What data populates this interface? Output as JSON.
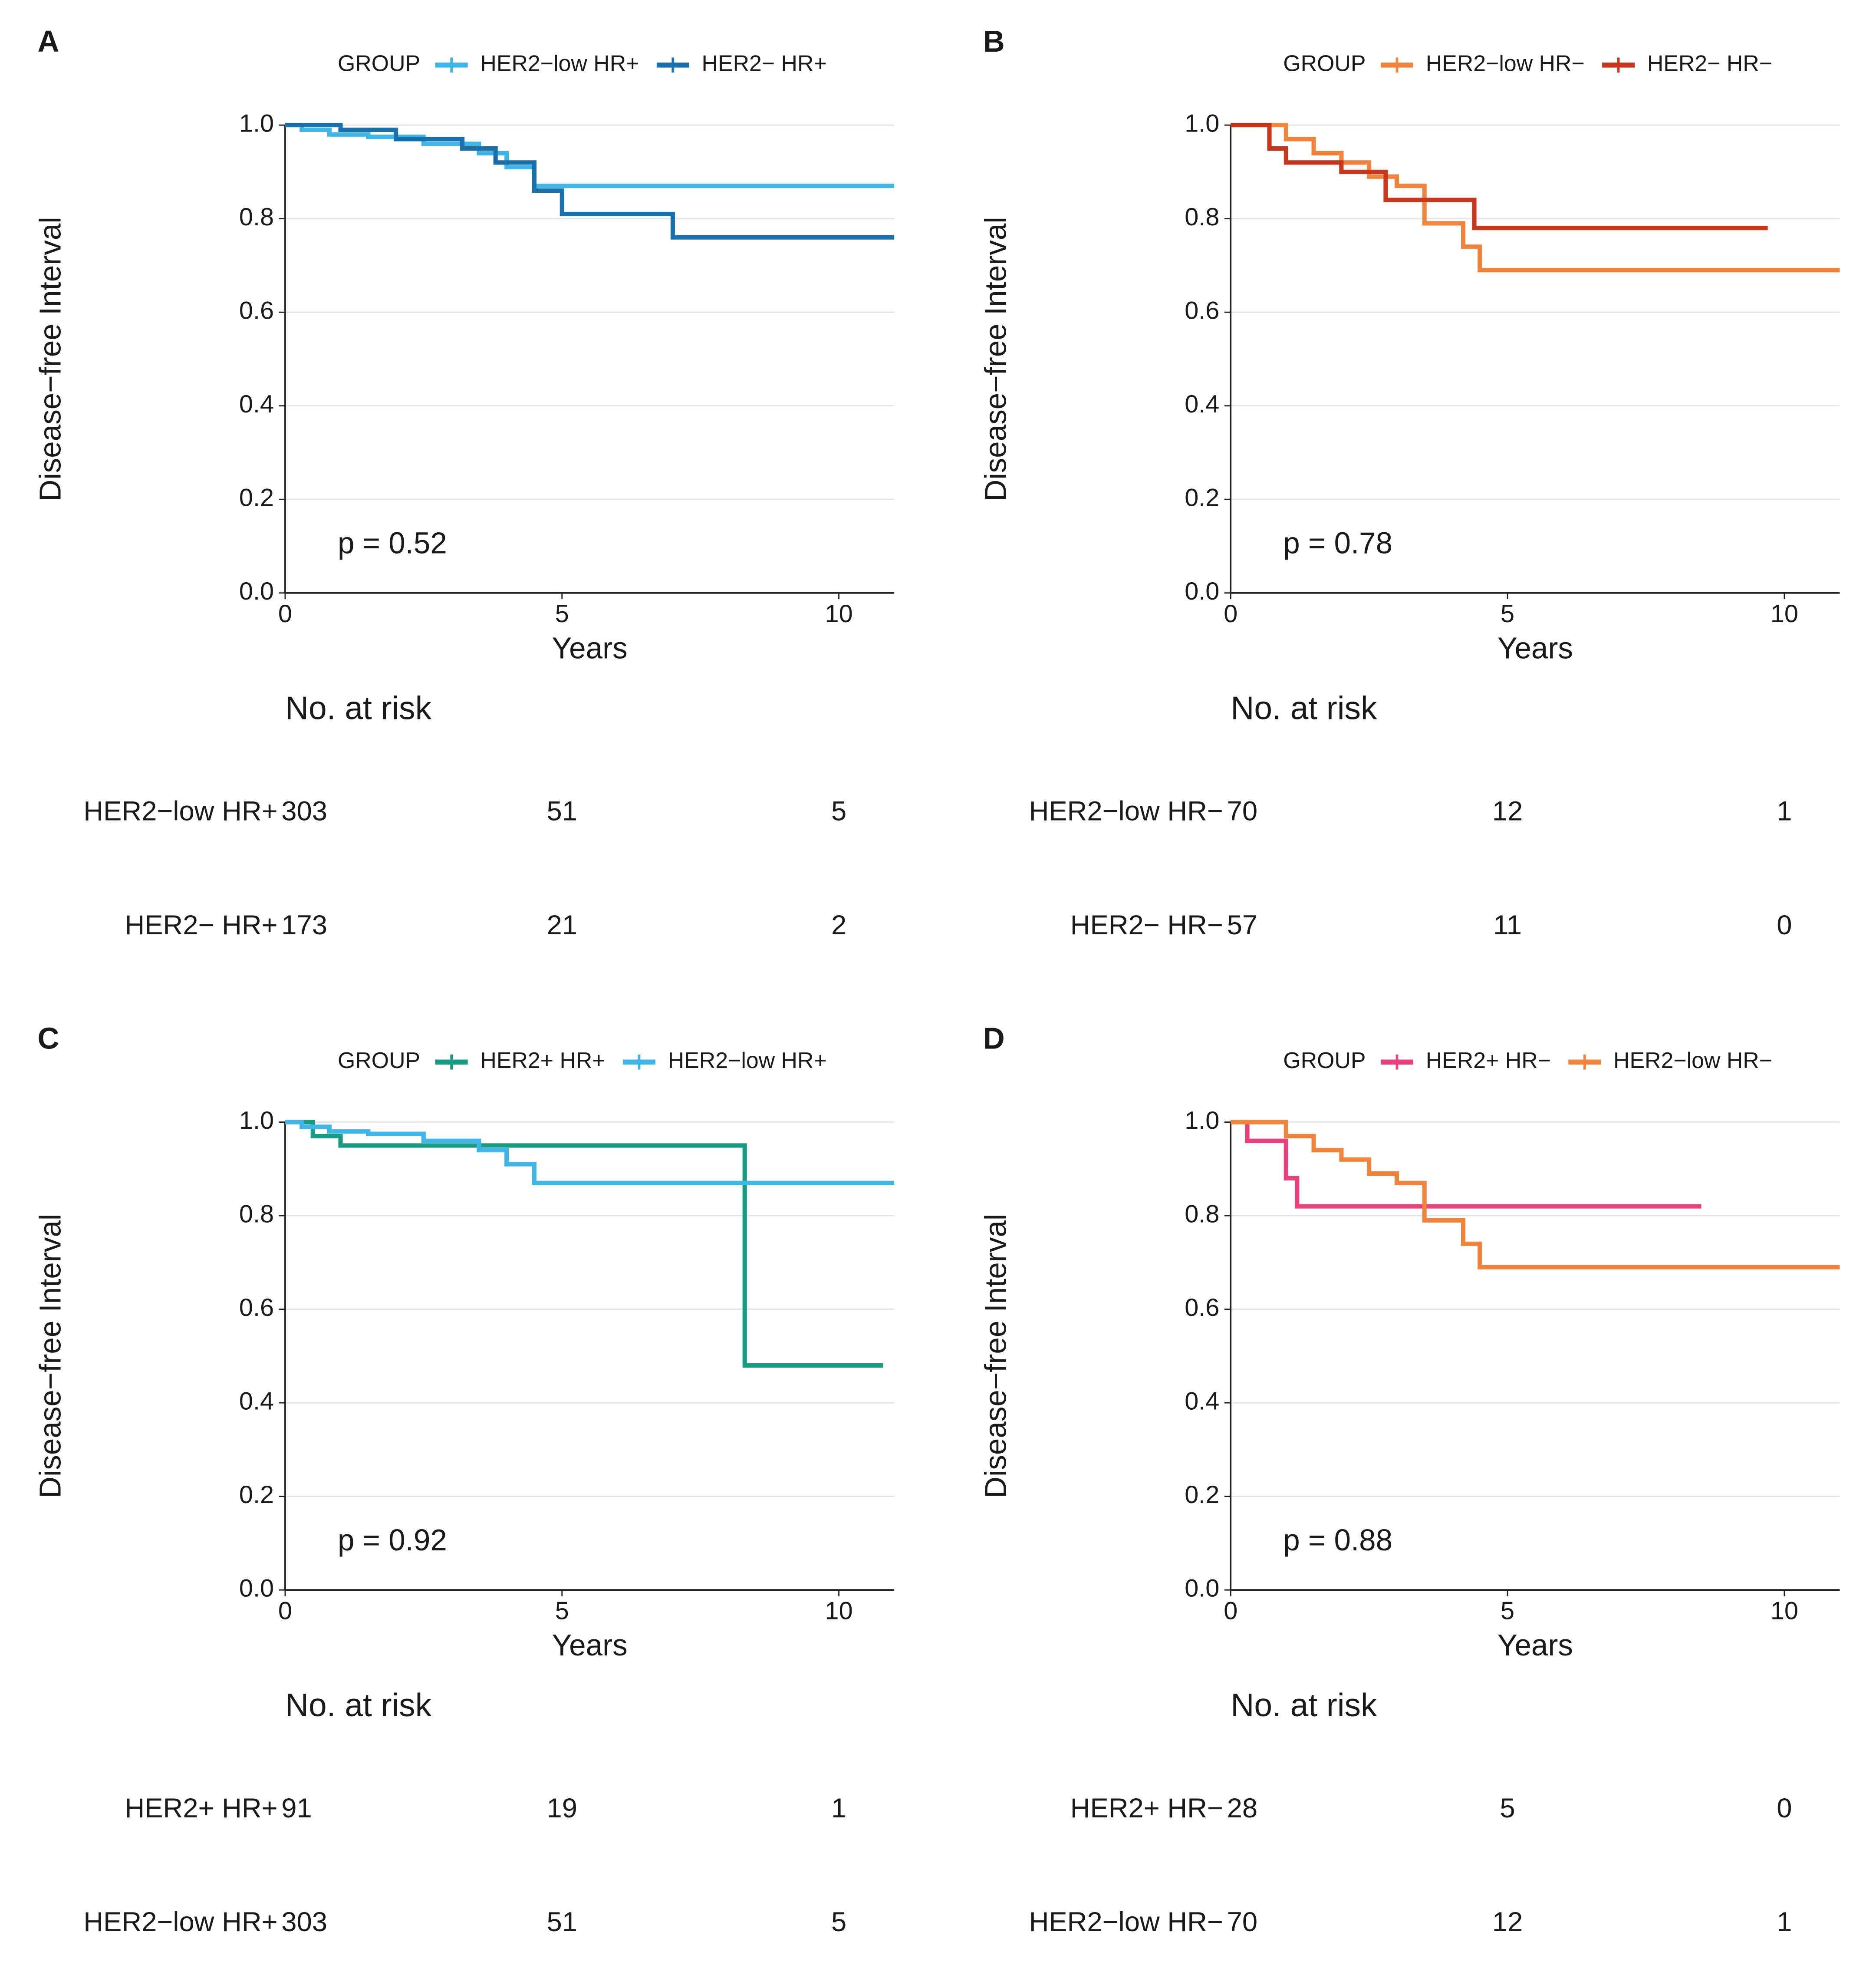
{
  "chart_data": [
    {
      "type": "line",
      "panel": "A",
      "legend_title": "GROUP",
      "xlabel": "Years",
      "ylabel": "Disease−free Interval",
      "annotation": "p = 0.52",
      "xlim": [
        0,
        11
      ],
      "ylim": [
        0,
        1
      ],
      "xticks": [
        0,
        5,
        10
      ],
      "yticks": [
        {
          "value": 0,
          "label": "0.0"
        },
        0.2,
        0.4,
        0.6,
        0.8,
        {
          "value": 1,
          "label": "1.0"
        }
      ],
      "grid": true,
      "step": true,
      "series": [
        {
          "name": "HER2−low HR+",
          "color": "#3fb6e8",
          "x": [
            0,
            0.3,
            0.8,
            1.5,
            2.5,
            3.5,
            4,
            4.5,
            11
          ],
          "values": [
            1,
            0.99,
            0.98,
            0.975,
            0.96,
            0.94,
            0.91,
            0.87,
            0.87
          ]
        },
        {
          "name": "HER2− HR+",
          "color": "#1a6fad",
          "x": [
            0,
            1,
            2,
            3.2,
            3.8,
            4.5,
            5,
            7,
            11
          ],
          "values": [
            1,
            0.99,
            0.97,
            0.95,
            0.92,
            0.86,
            0.81,
            0.76,
            0.76
          ]
        }
      ],
      "risk_table": {
        "title": "No. at risk",
        "rows": [
          {
            "name": "HER2−low HR+",
            "values": [
              303,
              51,
              5
            ]
          },
          {
            "name": "HER2− HR+",
            "values": [
              173,
              21,
              2
            ]
          }
        ]
      }
    },
    {
      "type": "line",
      "panel": "B",
      "legend_title": "GROUP",
      "xlabel": "Years",
      "ylabel": "Disease−free Interval",
      "annotation": "p = 0.78",
      "xlim": [
        0,
        11
      ],
      "ylim": [
        0,
        1
      ],
      "xticks": [
        0,
        5,
        10
      ],
      "yticks": [
        {
          "value": 0,
          "label": "0.0"
        },
        0.2,
        0.4,
        0.6,
        0.8,
        {
          "value": 1,
          "label": "1.0"
        }
      ],
      "grid": true,
      "step": true,
      "series": [
        {
          "name": "HER2−low HR−",
          "color": "#f0843c",
          "x": [
            0,
            1,
            1.5,
            2,
            2.5,
            3,
            3.5,
            4.2,
            4.5,
            11
          ],
          "values": [
            1,
            0.97,
            0.94,
            0.92,
            0.89,
            0.87,
            0.79,
            0.74,
            0.69,
            0.69
          ]
        },
        {
          "name": "HER2− HR−",
          "color": "#c8361b",
          "x": [
            0,
            0.7,
            1,
            2,
            2.8,
            4.4,
            9.7
          ],
          "values": [
            1,
            0.95,
            0.92,
            0.9,
            0.84,
            0.78,
            0.78
          ]
        }
      ],
      "risk_table": {
        "title": "No. at risk",
        "rows": [
          {
            "name": "HER2−low HR−",
            "values": [
              70,
              12,
              1
            ]
          },
          {
            "name": "HER2− HR−",
            "values": [
              57,
              11,
              0
            ]
          }
        ]
      }
    },
    {
      "type": "line",
      "panel": "C",
      "legend_title": "GROUP",
      "xlabel": "Years",
      "ylabel": "Disease−free Interval",
      "annotation": "p = 0.92",
      "xlim": [
        0,
        11
      ],
      "ylim": [
        0,
        1
      ],
      "xticks": [
        0,
        5,
        10
      ],
      "yticks": [
        {
          "value": 0,
          "label": "0.0"
        },
        0.2,
        0.4,
        0.6,
        0.8,
        {
          "value": 1,
          "label": "1.0"
        }
      ],
      "grid": true,
      "step": true,
      "series": [
        {
          "name": "HER2+ HR+",
          "color": "#179b83",
          "x": [
            0,
            0.5,
            1,
            8.3,
            10.8
          ],
          "values": [
            1,
            0.97,
            0.95,
            0.48,
            0.48
          ]
        },
        {
          "name": "HER2−low HR+",
          "color": "#3fb6e8",
          "x": [
            0,
            0.3,
            0.8,
            1.5,
            2.5,
            3.5,
            4,
            4.5,
            11
          ],
          "values": [
            1,
            0.99,
            0.98,
            0.975,
            0.96,
            0.94,
            0.91,
            0.87,
            0.87
          ]
        }
      ],
      "risk_table": {
        "title": "No. at risk",
        "rows": [
          {
            "name": "HER2+ HR+",
            "values": [
              91,
              19,
              1
            ]
          },
          {
            "name": "HER2−low HR+",
            "values": [
              303,
              51,
              5
            ]
          }
        ]
      }
    },
    {
      "type": "line",
      "panel": "D",
      "legend_title": "GROUP",
      "xlabel": "Years",
      "ylabel": "Disease−free Interval",
      "annotation": "p = 0.88",
      "xlim": [
        0,
        11
      ],
      "ylim": [
        0,
        1
      ],
      "xticks": [
        0,
        5,
        10
      ],
      "yticks": [
        {
          "value": 0,
          "label": "0.0"
        },
        0.2,
        0.4,
        0.6,
        0.8,
        {
          "value": 1,
          "label": "1.0"
        }
      ],
      "grid": true,
      "step": true,
      "series": [
        {
          "name": "HER2+ HR−",
          "color": "#e8407c",
          "x": [
            0,
            0.3,
            1,
            1.2,
            8.5
          ],
          "values": [
            1,
            0.96,
            0.88,
            0.82,
            0.82
          ]
        },
        {
          "name": "HER2−low HR−",
          "color": "#f0843c",
          "x": [
            0,
            1,
            1.5,
            2,
            2.5,
            3,
            3.5,
            4.2,
            4.5,
            11
          ],
          "values": [
            1,
            0.97,
            0.94,
            0.92,
            0.89,
            0.87,
            0.79,
            0.74,
            0.69,
            0.69
          ]
        }
      ],
      "risk_table": {
        "title": "No. at risk",
        "rows": [
          {
            "name": "HER2+ HR−",
            "values": [
              28,
              5,
              0
            ]
          },
          {
            "name": "HER2−low HR−",
            "values": [
              70,
              12,
              1
            ]
          }
        ]
      }
    }
  ]
}
